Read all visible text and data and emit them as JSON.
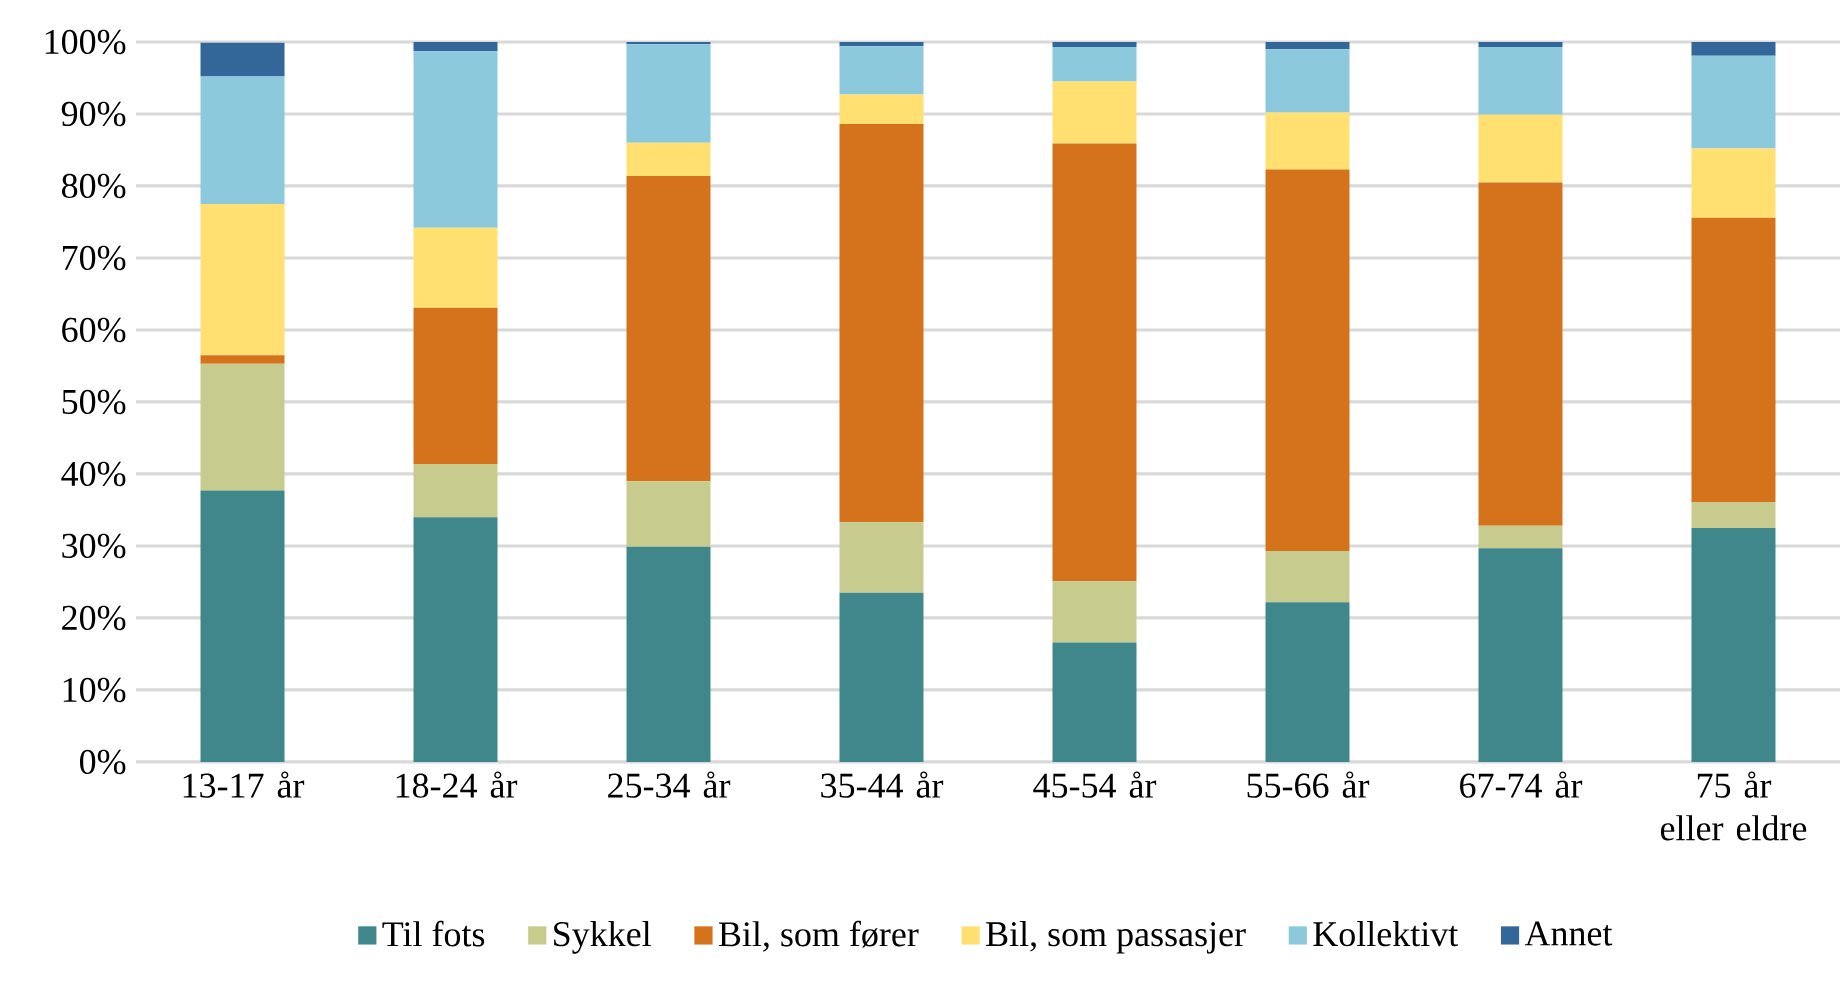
{
  "chart_data": {
    "type": "bar",
    "stacked": true,
    "categories": [
      "13-17 år",
      "18-24 år",
      "25-34 år",
      "35-44 år",
      "45-54 år",
      "55-66 år",
      "67-74 år",
      "75 år eller eldre"
    ],
    "series": [
      {
        "name": "Til fots",
        "color": "#40878b",
        "values": [
          37.7,
          34.0,
          29.9,
          23.5,
          16.6,
          22.2,
          29.7,
          32.5
        ]
      },
      {
        "name": "Sykkel",
        "color": "#c7cc8e",
        "values": [
          17.6,
          7.4,
          9.1,
          9.8,
          8.5,
          7.1,
          3.1,
          3.6
        ]
      },
      {
        "name": "Bil, som fører",
        "color": "#d4731b",
        "values": [
          1.2,
          21.7,
          42.4,
          55.3,
          60.8,
          53.0,
          47.7,
          39.5
        ]
      },
      {
        "name": "Bil, som passasjer",
        "color": "#ffe070",
        "values": [
          21.0,
          11.1,
          4.6,
          4.1,
          8.6,
          7.9,
          9.4,
          9.6
        ]
      },
      {
        "name": "Kollektivt",
        "color": "#8dc9dc",
        "values": [
          17.7,
          24.5,
          13.7,
          6.7,
          4.8,
          8.8,
          9.4,
          12.9
        ]
      },
      {
        "name": "Annet",
        "color": "#336699",
        "values": [
          4.7,
          1.3,
          0.3,
          0.6,
          0.7,
          1.0,
          0.7,
          1.9
        ]
      }
    ],
    "ylim": [
      0,
      100
    ],
    "yticks": [
      {
        "value": 0,
        "label": "0%"
      },
      {
        "value": 10,
        "label": "10%"
      },
      {
        "value": 20,
        "label": "20%"
      },
      {
        "value": 30,
        "label": "30%"
      },
      {
        "value": 40,
        "label": "40%"
      },
      {
        "value": 50,
        "label": "50%"
      },
      {
        "value": 60,
        "label": "60%"
      },
      {
        "value": 70,
        "label": "70%"
      },
      {
        "value": 80,
        "label": "80%"
      },
      {
        "value": 90,
        "label": "90%"
      },
      {
        "value": 100,
        "label": "100%"
      }
    ],
    "grid": "y",
    "legend": "bottom"
  }
}
